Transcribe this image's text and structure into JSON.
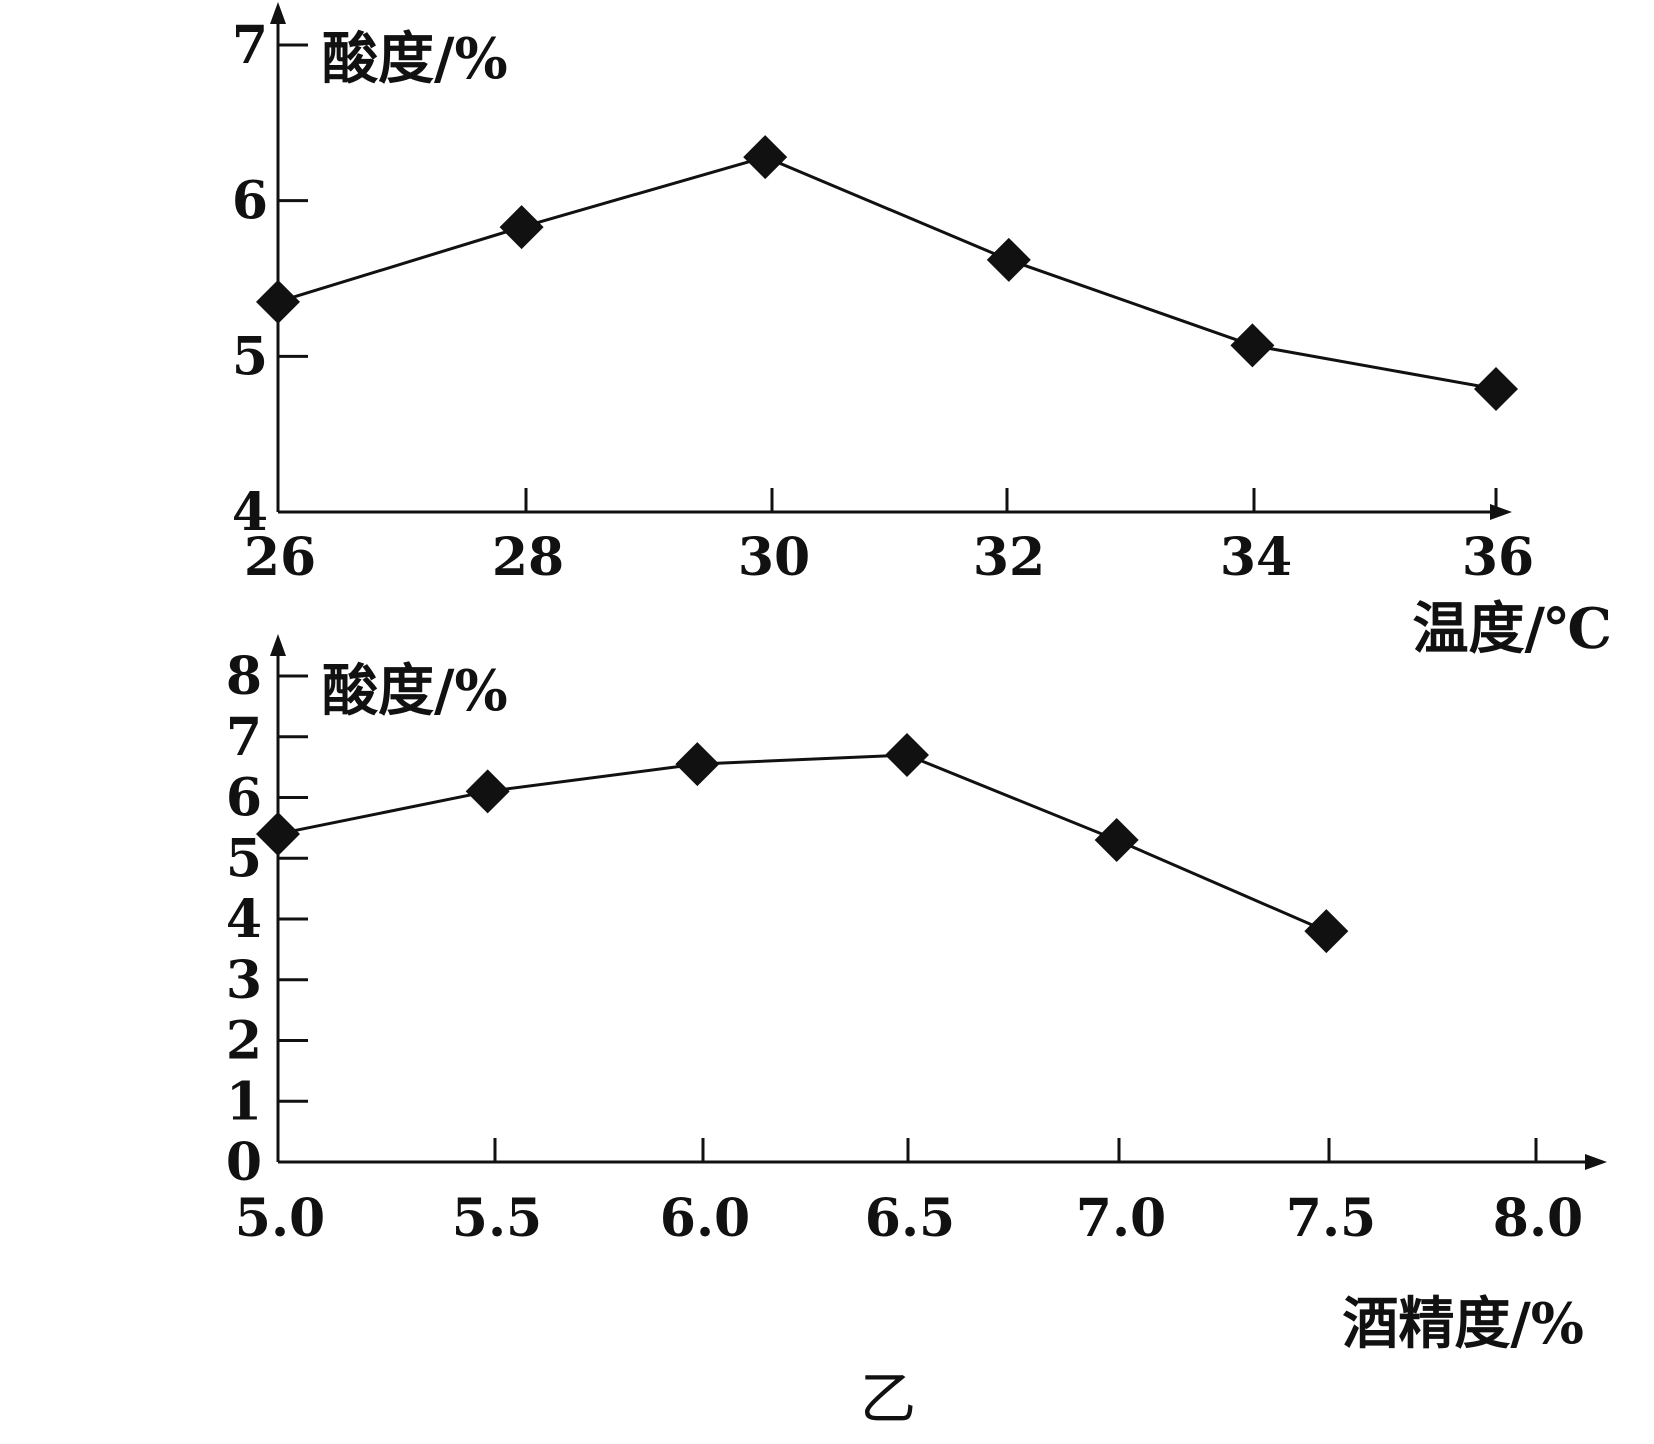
{
  "chart_data": [
    {
      "type": "line",
      "title": "",
      "xlabel": "温度/℃",
      "ylabel": "酸度/%",
      "x": [
        26,
        28,
        30,
        32,
        34,
        36
      ],
      "x_tick_labels": [
        "26",
        "28",
        "30",
        "32",
        "34",
        "36"
      ],
      "y_tick_labels": [
        "4",
        "5",
        "6",
        "7"
      ],
      "xlim": [
        26,
        36
      ],
      "ylim": [
        4,
        7
      ],
      "grid": false,
      "marker": "diamond",
      "series": [
        {
          "values": [
            5.35,
            5.83,
            6.28,
            5.62,
            5.07,
            4.79
          ]
        }
      ]
    },
    {
      "type": "line",
      "title": "",
      "xlabel": "酒精度/%",
      "ylabel": "酸度/%",
      "x": [
        5.0,
        5.5,
        6.0,
        6.5,
        7.0,
        7.5
      ],
      "x_tick_labels": [
        "5.0",
        "5.5",
        "6.0",
        "6.5",
        "7.0",
        "7.5",
        "8.0"
      ],
      "y_tick_labels": [
        "0",
        "1",
        "2",
        "3",
        "4",
        "5",
        "6",
        "7",
        "8"
      ],
      "xlim": [
        5.0,
        8.0
      ],
      "ylim": [
        0,
        8
      ],
      "grid": false,
      "marker": "diamond",
      "series": [
        {
          "values": [
            5.4,
            6.1,
            6.55,
            6.7,
            5.3,
            3.8
          ]
        }
      ]
    }
  ],
  "caption": "乙"
}
